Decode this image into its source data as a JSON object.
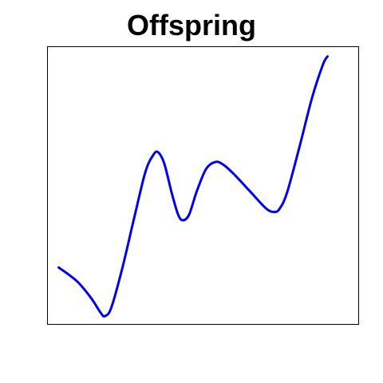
{
  "chart_data": {
    "type": "line",
    "title": "Offspring",
    "xlabel": "",
    "ylabel": "",
    "x_axis_visible": false,
    "y_axis_visible": false,
    "grid": false,
    "xlim": [
      0,
      1
    ],
    "ylim": [
      0,
      1
    ],
    "series": [
      {
        "color": "#0000ee",
        "points": [
          [
            0.036,
            0.205
          ],
          [
            0.095,
            0.155
          ],
          [
            0.14,
            0.095
          ],
          [
            0.172,
            0.04
          ],
          [
            0.185,
            0.03
          ],
          [
            0.205,
            0.06
          ],
          [
            0.24,
            0.2
          ],
          [
            0.28,
            0.39
          ],
          [
            0.315,
            0.55
          ],
          [
            0.34,
            0.61
          ],
          [
            0.355,
            0.62
          ],
          [
            0.375,
            0.58
          ],
          [
            0.4,
            0.47
          ],
          [
            0.42,
            0.395
          ],
          [
            0.435,
            0.375
          ],
          [
            0.455,
            0.395
          ],
          [
            0.48,
            0.48
          ],
          [
            0.51,
            0.56
          ],
          [
            0.54,
            0.585
          ],
          [
            0.565,
            0.575
          ],
          [
            0.6,
            0.54
          ],
          [
            0.65,
            0.48
          ],
          [
            0.7,
            0.42
          ],
          [
            0.725,
            0.405
          ],
          [
            0.745,
            0.415
          ],
          [
            0.77,
            0.475
          ],
          [
            0.81,
            0.64
          ],
          [
            0.85,
            0.815
          ],
          [
            0.885,
            0.935
          ],
          [
            0.9,
            0.965
          ]
        ]
      }
    ]
  }
}
